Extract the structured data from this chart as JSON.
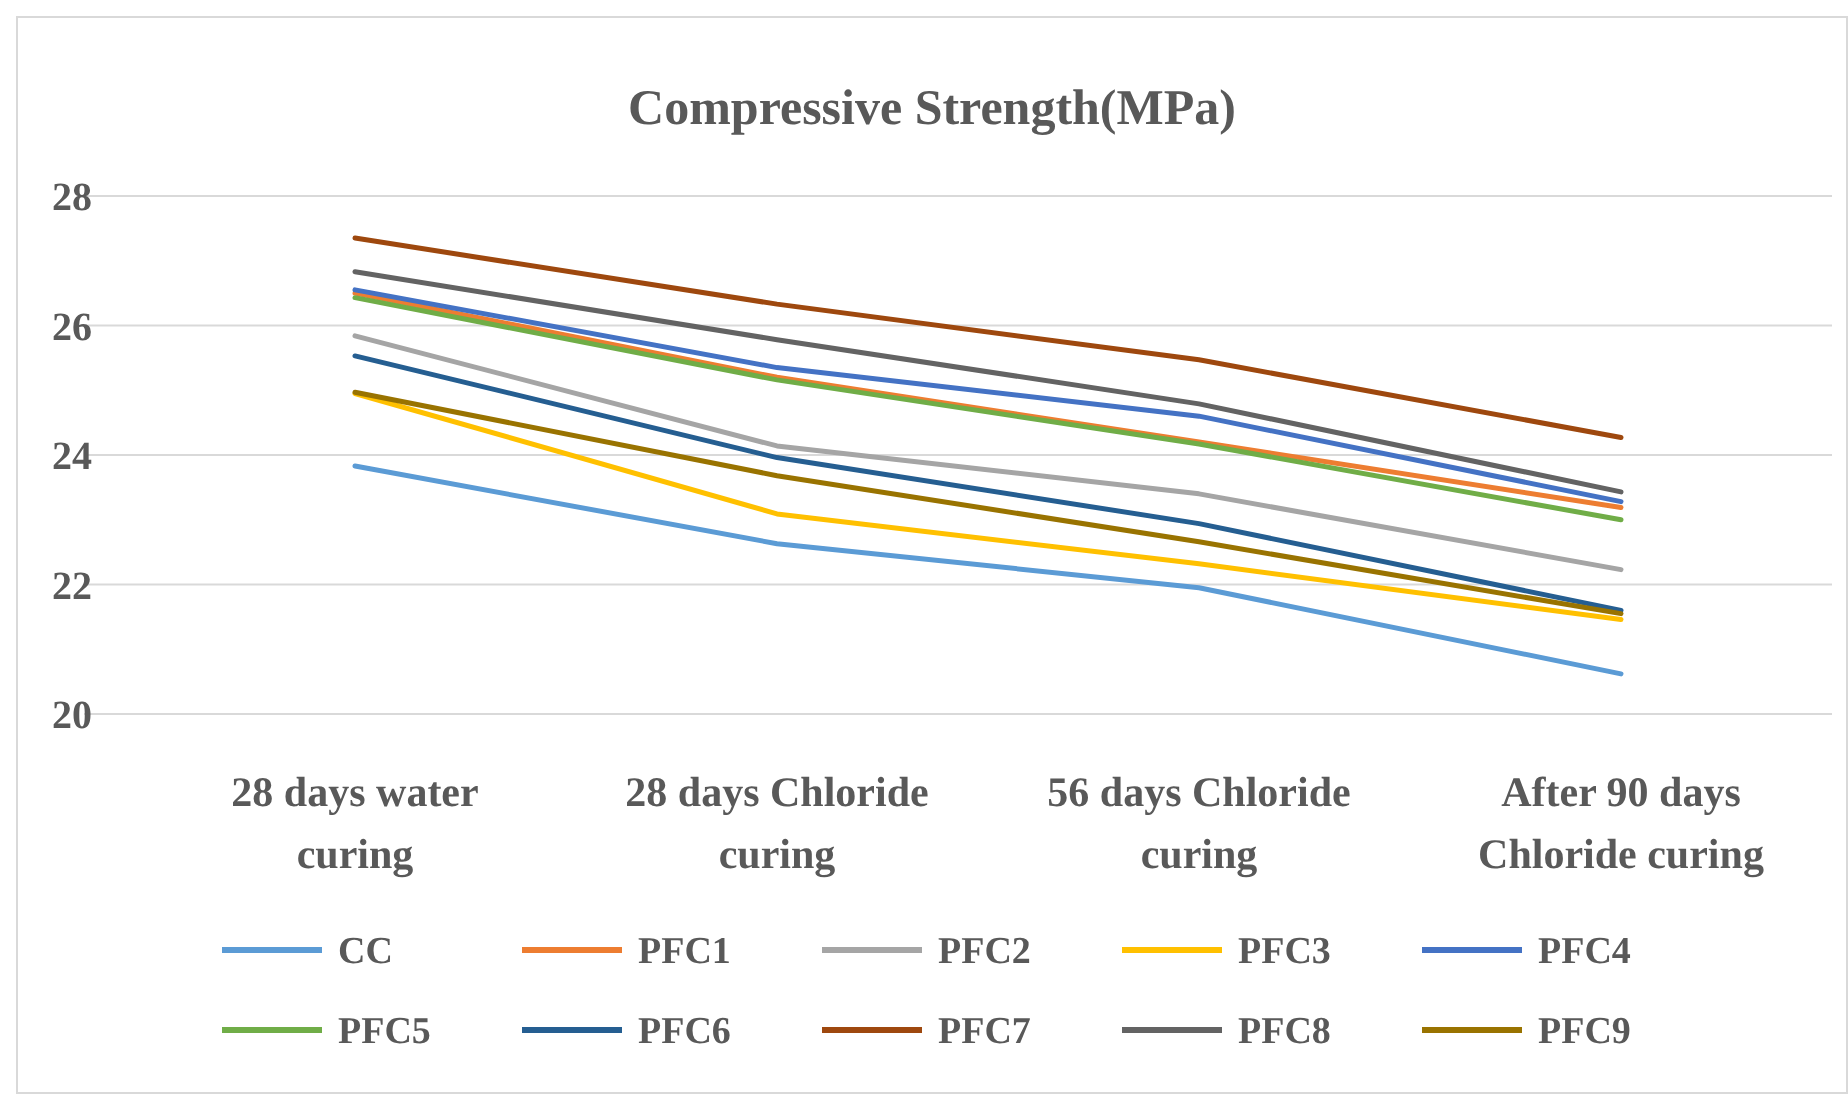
{
  "chart_data": {
    "type": "line",
    "title": "Compressive Strength(MPa)",
    "categories": [
      "28 days water curing",
      "28 days Chloride curing",
      "56 days Chloride curing",
      "After 90 days Chloride curing"
    ],
    "ylim": [
      20,
      28
    ],
    "yticks": [
      20,
      22,
      24,
      26,
      28
    ],
    "grid": "y",
    "legend": "bottom",
    "marker": "none",
    "line_style": "solid",
    "series": [
      {
        "name": "CC",
        "color": "#5b9bd5",
        "values": [
          23.83,
          22.63,
          21.95,
          20.62
        ]
      },
      {
        "name": "PFC1",
        "color": "#ed7d31",
        "values": [
          26.5,
          25.2,
          24.2,
          23.19
        ]
      },
      {
        "name": "PFC2",
        "color": "#a5a5a5",
        "values": [
          25.84,
          24.14,
          23.4,
          22.23
        ]
      },
      {
        "name": "PFC3",
        "color": "#ffc000",
        "values": [
          24.95,
          23.09,
          22.32,
          21.46
        ]
      },
      {
        "name": "PFC4",
        "color": "#4472c4",
        "values": [
          26.55,
          25.35,
          24.6,
          23.28
        ]
      },
      {
        "name": "PFC5",
        "color": "#70ad47",
        "values": [
          26.43,
          25.16,
          24.17,
          23.0
        ]
      },
      {
        "name": "PFC6",
        "color": "#255e91",
        "values": [
          25.53,
          23.96,
          22.94,
          21.6
        ]
      },
      {
        "name": "PFC7",
        "color": "#9e480e",
        "values": [
          27.35,
          26.33,
          25.47,
          24.27
        ]
      },
      {
        "name": "PFC8",
        "color": "#636363",
        "values": [
          26.83,
          25.78,
          24.79,
          23.43
        ]
      },
      {
        "name": "PFC9",
        "color": "#997300",
        "values": [
          24.97,
          23.68,
          22.66,
          21.55
        ]
      }
    ]
  }
}
